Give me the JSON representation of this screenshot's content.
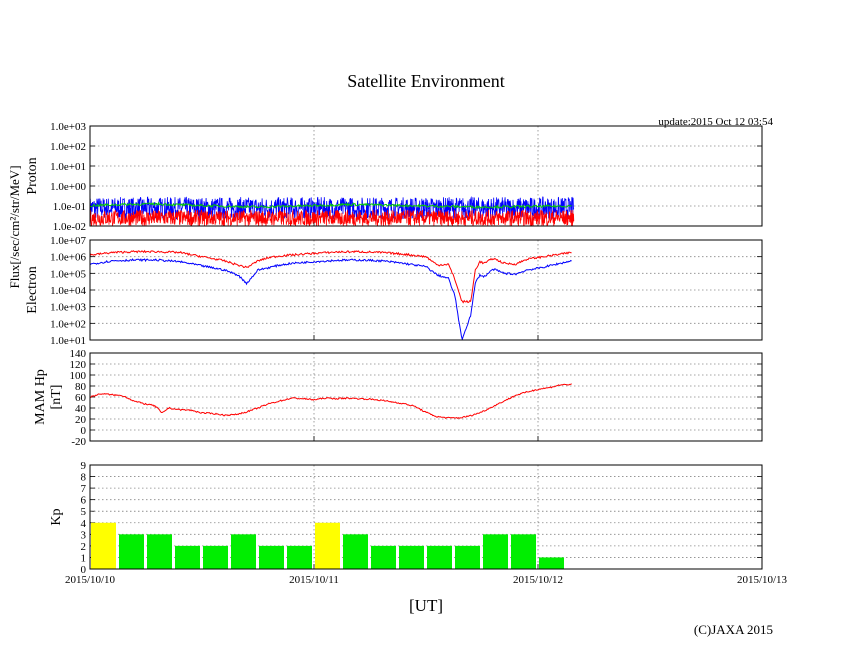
{
  "title": "Satellite Environment",
  "update_label": "update:2015 Oct 12 03:54",
  "copyright": "(C)JAXA 2015",
  "x_axis": {
    "label": "[UT]",
    "unit": "days since 2015/10/10 00:00 UT",
    "range": [
      0,
      3
    ],
    "ticks": [
      {
        "value": 0,
        "label": "2015/10/10"
      },
      {
        "value": 1,
        "label": "2015/10/11"
      },
      {
        "value": 2,
        "label": "2015/10/12"
      },
      {
        "value": 3,
        "label": "2015/10/13"
      }
    ]
  },
  "flux_axis_label": "Flux[/sec/cm²/str/MeV]",
  "chart_data": [
    {
      "type": "line",
      "panel": "proton",
      "ylabel": "Proton",
      "yscale": "log",
      "ylim_exp": [
        -2,
        3
      ],
      "ytick_labels": [
        "1.0e-02",
        "1.0e-01",
        "1.0e+00",
        "1.0e+01",
        "1.0e+02",
        "1.0e+03"
      ],
      "series": [
        {
          "name": "proton-low",
          "color": "#0000ff",
          "mean_exp": -1.1,
          "noise_exp": 0.55
        },
        {
          "name": "proton-high",
          "color": "#ff0000",
          "mean_exp": -1.6,
          "noise_exp": 0.4
        },
        {
          "name": "proton-green",
          "color": "#00cc00",
          "x": [
            0,
            0.15,
            0.3,
            0.5,
            0.75,
            1.0,
            1.15,
            1.3,
            1.5,
            1.75,
            2.0,
            2.15
          ],
          "y_exp": [
            -0.98,
            -0.92,
            -0.9,
            -0.98,
            -1.05,
            -0.98,
            -0.92,
            -0.95,
            -1.0,
            -1.05,
            -1.02,
            -1.0
          ]
        }
      ],
      "x_end": 2.16
    },
    {
      "type": "line",
      "panel": "electron",
      "ylabel": "Electron",
      "yscale": "log",
      "ylim_exp": [
        1,
        7
      ],
      "ytick_labels": [
        "1.0e+01",
        "1.0e+02",
        "1.0e+03",
        "1.0e+04",
        "1.0e+05",
        "1.0e+06",
        "1.0e+07"
      ],
      "series": [
        {
          "name": "electron-high",
          "color": "#ff0000",
          "x": [
            0,
            0.1,
            0.2,
            0.3,
            0.4,
            0.5,
            0.6,
            0.66,
            0.7,
            0.75,
            0.8,
            0.85,
            0.9,
            1.0,
            1.1,
            1.2,
            1.3,
            1.4,
            1.5,
            1.55,
            1.6,
            1.63,
            1.66,
            1.7,
            1.72,
            1.74,
            1.76,
            1.8,
            1.85,
            1.9,
            1.95,
            2.0,
            2.05,
            2.1,
            2.15
          ],
          "y_exp": [
            6.1,
            6.25,
            6.3,
            6.3,
            6.25,
            6.0,
            5.75,
            5.5,
            5.35,
            5.75,
            5.95,
            6.05,
            6.1,
            6.2,
            6.28,
            6.3,
            6.25,
            6.15,
            6.0,
            5.5,
            5.55,
            4.6,
            3.3,
            3.3,
            5.2,
            5.7,
            5.6,
            5.9,
            5.6,
            5.55,
            5.85,
            5.95,
            6.05,
            6.15,
            6.25
          ]
        },
        {
          "name": "electron-low",
          "color": "#0000ff",
          "x": [
            0,
            0.1,
            0.2,
            0.3,
            0.4,
            0.5,
            0.6,
            0.66,
            0.7,
            0.75,
            0.8,
            0.85,
            0.9,
            1.0,
            1.1,
            1.2,
            1.3,
            1.4,
            1.5,
            1.55,
            1.6,
            1.63,
            1.66,
            1.7,
            1.72,
            1.74,
            1.76,
            1.8,
            1.85,
            1.9,
            1.95,
            2.0,
            2.05,
            2.1,
            2.15
          ],
          "y_exp": [
            5.55,
            5.75,
            5.8,
            5.8,
            5.7,
            5.45,
            5.2,
            4.9,
            4.4,
            5.2,
            5.35,
            5.5,
            5.6,
            5.7,
            5.78,
            5.8,
            5.75,
            5.6,
            5.4,
            4.9,
            4.7,
            3.6,
            1.0,
            2.5,
            4.4,
            4.9,
            4.8,
            5.25,
            5.0,
            4.95,
            5.2,
            5.3,
            5.45,
            5.6,
            5.75
          ]
        }
      ],
      "x_end": 2.16
    },
    {
      "type": "line",
      "panel": "mam-hp",
      "ylabel": "MAM Hp",
      "ylabel2": "[nT]",
      "ylim": [
        -20,
        140
      ],
      "yticks": [
        -20,
        0,
        20,
        40,
        60,
        80,
        100,
        120,
        140
      ],
      "series": [
        {
          "name": "hp",
          "color": "#ff0000",
          "x": [
            0,
            0.05,
            0.1,
            0.15,
            0.2,
            0.25,
            0.28,
            0.3,
            0.32,
            0.35,
            0.4,
            0.45,
            0.5,
            0.55,
            0.6,
            0.65,
            0.7,
            0.75,
            0.8,
            0.9,
            0.95,
            1.0,
            1.05,
            1.1,
            1.15,
            1.2,
            1.25,
            1.3,
            1.35,
            1.4,
            1.45,
            1.5,
            1.55,
            1.6,
            1.65,
            1.7,
            1.75,
            1.8,
            1.85,
            1.9,
            1.95,
            2.0,
            2.05,
            2.1,
            2.15
          ],
          "y": [
            60,
            66,
            64,
            62,
            52,
            47,
            45,
            41,
            30,
            40,
            37,
            36,
            31,
            30,
            27,
            28,
            33,
            40,
            48,
            58,
            57,
            55,
            58,
            57,
            58,
            57,
            56,
            54,
            51,
            48,
            43,
            32,
            24,
            22,
            22,
            26,
            33,
            43,
            53,
            63,
            69,
            74,
            77,
            82,
            83
          ]
        }
      ],
      "x_end": 2.16
    },
    {
      "type": "bar",
      "panel": "kp",
      "ylabel": "Kp",
      "ylim": [
        0,
        9
      ],
      "yticks": [
        0,
        1,
        2,
        3,
        4,
        5,
        6,
        7,
        8,
        9
      ],
      "bar_width_days": 0.125,
      "bar_starts_days": [
        0,
        0.125,
        0.25,
        0.375,
        0.5,
        0.625,
        0.75,
        0.875,
        1.0,
        1.125,
        1.25,
        1.375,
        1.5,
        1.625,
        1.75,
        1.875,
        2.0
      ],
      "values": [
        4,
        3,
        3,
        2,
        2,
        3,
        2,
        2,
        4,
        3,
        2,
        2,
        2,
        2,
        3,
        3,
        1
      ],
      "colors": [
        "#ffff00",
        "#00ee00",
        "#00ee00",
        "#00ee00",
        "#00ee00",
        "#00ee00",
        "#00ee00",
        "#00ee00",
        "#ffff00",
        "#00ee00",
        "#00ee00",
        "#00ee00",
        "#00ee00",
        "#00ee00",
        "#00ee00",
        "#00ee00",
        "#00ee00"
      ],
      "threshold": 5
    }
  ]
}
